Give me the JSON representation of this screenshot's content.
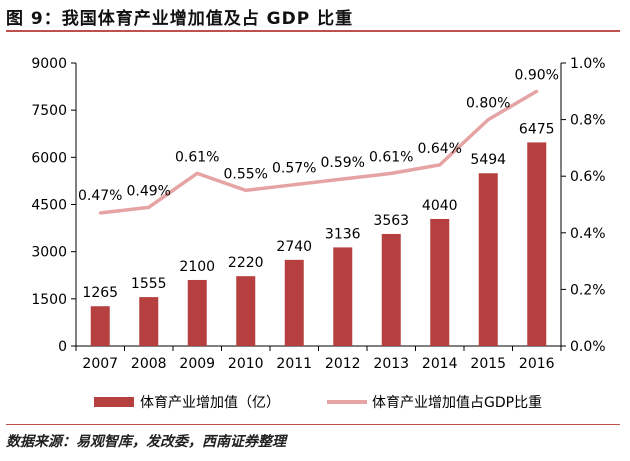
{
  "title": "图 9：我国体育产业增加值及占 GDP 比重",
  "source": "数据来源：易观智库，发改委，西南证券整理",
  "colors": {
    "bar": "#b5403f",
    "line": "#e5a3a3",
    "rule": "#c0504d"
  },
  "chart_data": {
    "type": "bar",
    "categories": [
      "2007",
      "2008",
      "2009",
      "2010",
      "2011",
      "2012",
      "2013",
      "2014",
      "2015",
      "2016"
    ],
    "series": [
      {
        "name": "体育产业增加值（亿）",
        "type": "bar",
        "axis": "left",
        "values": [
          1265,
          1555,
          2100,
          2220,
          2740,
          3136,
          3563,
          4040,
          5494,
          6475
        ],
        "labels": [
          "1265",
          "1555",
          "2100",
          "2220",
          "2740",
          "3136",
          "3563",
          "4040",
          "5494",
          "6475"
        ]
      },
      {
        "name": "体育产业增加值占GDP比重",
        "type": "line",
        "axis": "right",
        "values": [
          0.47,
          0.49,
          0.61,
          0.55,
          0.57,
          0.59,
          0.61,
          0.64,
          0.8,
          0.9
        ],
        "labels": [
          "0.47%",
          "0.49%",
          "0.61%",
          "0.55%",
          "0.57%",
          "0.59%",
          "0.61%",
          "0.64%",
          "0.80%",
          "0.90%"
        ]
      }
    ],
    "y_left": {
      "ylim": [
        0,
        9000
      ],
      "ticks": [
        "0",
        "1500",
        "3000",
        "4500",
        "6000",
        "7500",
        "9000"
      ]
    },
    "y_right": {
      "ylim": [
        0,
        1.0
      ],
      "ticks": [
        "0.0%",
        "0.2%",
        "0.4%",
        "0.6%",
        "0.8%",
        "1.0%"
      ]
    },
    "legend": "bottom"
  }
}
